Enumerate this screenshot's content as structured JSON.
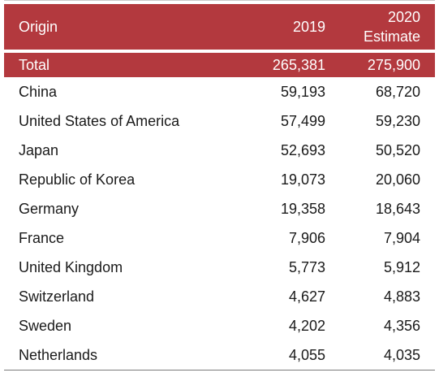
{
  "table": {
    "headers": {
      "origin": "Origin",
      "year_2019": "2019",
      "year_2020_line1": "2020",
      "year_2020_line2": "Estimate"
    },
    "total": {
      "origin": "Total",
      "v2019": "265,381",
      "v2020": "275,900"
    },
    "rows": [
      {
        "origin": "China",
        "v2019": "59,193",
        "v2020": "68,720"
      },
      {
        "origin": "United States of America",
        "v2019": "57,499",
        "v2020": "59,230"
      },
      {
        "origin": "Japan",
        "v2019": "52,693",
        "v2020": "50,520"
      },
      {
        "origin": "Republic of Korea",
        "v2019": "19,073",
        "v2020": "20,060"
      },
      {
        "origin": "Germany",
        "v2019": "19,358",
        "v2020": "18,643"
      },
      {
        "origin": "France",
        "v2019": "7,906",
        "v2020": "7,904"
      },
      {
        "origin": "United Kingdom",
        "v2019": "5,773",
        "v2020": "5,912"
      },
      {
        "origin": "Switzerland",
        "v2019": "4,627",
        "v2020": "4,883"
      },
      {
        "origin": "Sweden",
        "v2019": "4,202",
        "v2020": "4,356"
      },
      {
        "origin": "Netherlands",
        "v2019": "4,055",
        "v2020": "4,035"
      }
    ]
  },
  "colors": {
    "header_bg": "#b3393e",
    "header_text": "#ffffff",
    "body_text": "#1a1a1a"
  }
}
